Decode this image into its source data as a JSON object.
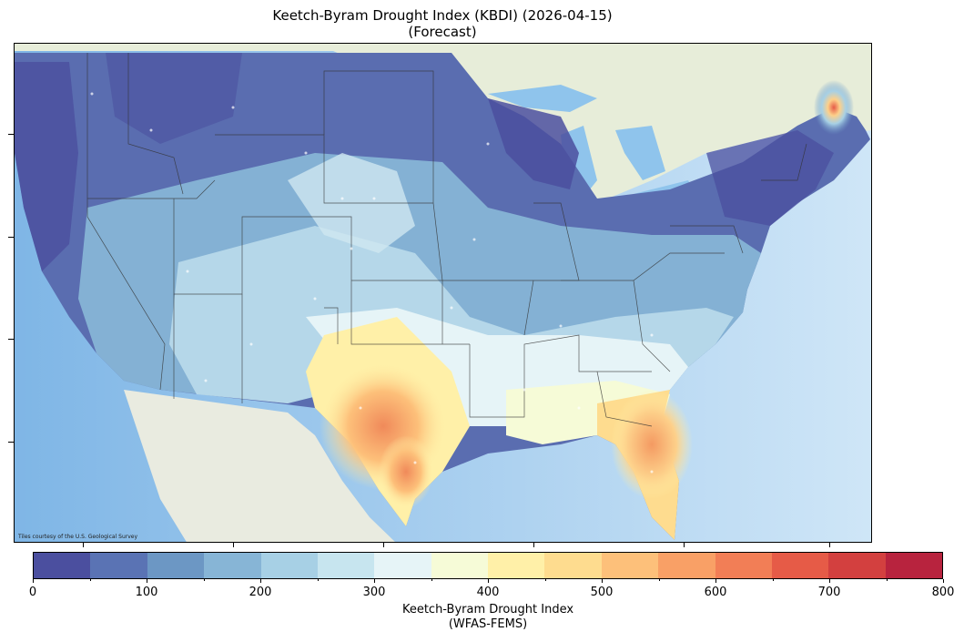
{
  "title": {
    "line1": "Keetch-Byram Drought Index (KBDI) (2026-04-15)",
    "line2": "(Forecast)"
  },
  "map": {
    "attribution": "Tiles courtesy of the U.S. Geological Survey",
    "land_color": "#eef0e4",
    "ocean_color": "#8fc4ec",
    "border_color": "#333333"
  },
  "colorbar": {
    "min": 0,
    "max": 800,
    "step": 50,
    "colors": [
      "#4b4f9f",
      "#5a73b4",
      "#6c97c4",
      "#87b5d6",
      "#a7d0e5",
      "#c7e5ef",
      "#e6f4f7",
      "#f6fbd7",
      "#fff0a8",
      "#fedc8f",
      "#fdc07a",
      "#f9a066",
      "#f27e56",
      "#e65b47",
      "#d3403f",
      "#b8233e"
    ],
    "tick_labels": [
      "0",
      "100",
      "200",
      "300",
      "400",
      "500",
      "600",
      "700",
      "800"
    ],
    "label_line1": "Keetch-Byram Drought Index",
    "label_line2": "(WFAS-FEMS)"
  }
}
